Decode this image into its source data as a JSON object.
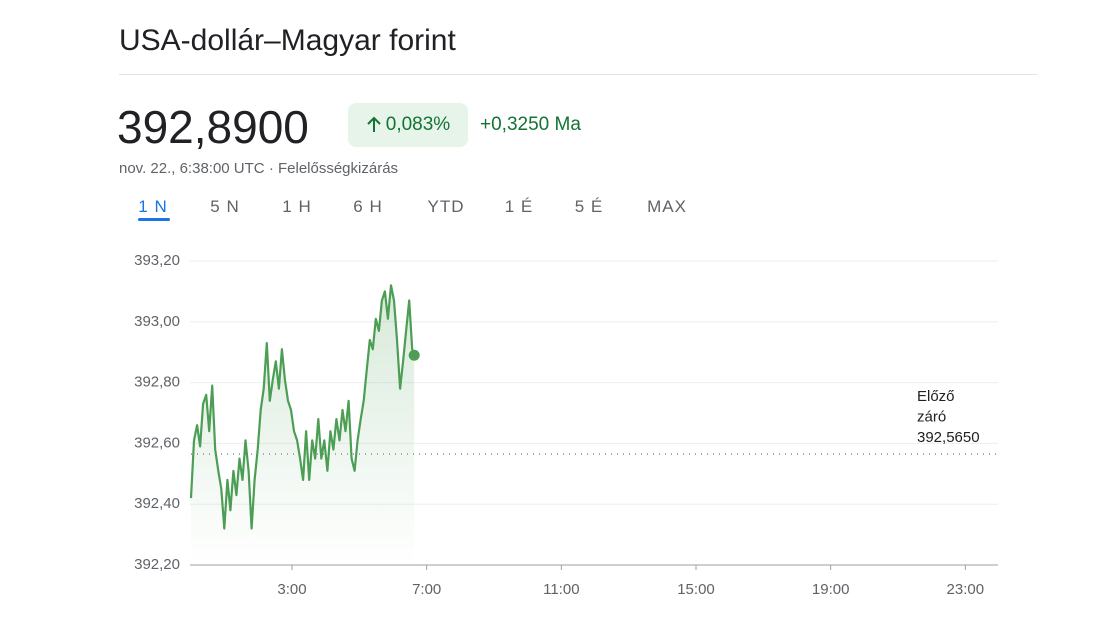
{
  "header": {
    "title": "USA-dollár–Magyar forint",
    "price": "392,8900",
    "change_percent": "0,083%",
    "change": "+0,3250 Ma",
    "timestamp": "nov. 22., 6:38:00 UTC",
    "separator": "·",
    "disclaimer": "Felelősségkizárás"
  },
  "tabs": {
    "items": [
      "1 N",
      "5 N",
      "1 H",
      "6 H",
      "YTD",
      "1 É",
      "5 É",
      "MAX"
    ],
    "selected": 0
  },
  "chart_data": {
    "type": "line",
    "color": "#4c9e55",
    "grid": true,
    "x": [
      0,
      0.09,
      0.18,
      0.27,
      0.36,
      0.45,
      0.54,
      0.63,
      0.72,
      0.81,
      0.9,
      0.99,
      1.08,
      1.17,
      1.26,
      1.35,
      1.44,
      1.53,
      1.62,
      1.71,
      1.8,
      1.89,
      1.98,
      2.07,
      2.16,
      2.25,
      2.34,
      2.43,
      2.52,
      2.61,
      2.7,
      2.79,
      2.88,
      2.97,
      3.06,
      3.15,
      3.24,
      3.33,
      3.42,
      3.51,
      3.6,
      3.69,
      3.78,
      3.87,
      3.96,
      4.05,
      4.14,
      4.23,
      4.32,
      4.41,
      4.5,
      4.59,
      4.68,
      4.77,
      4.86,
      4.95,
      5.04,
      5.13,
      5.22,
      5.31,
      5.4,
      5.49,
      5.58,
      5.67,
      5.76,
      5.85,
      5.94,
      6.03,
      6.12,
      6.21,
      6.3,
      6.39,
      6.48,
      6.57,
      6.63
    ],
    "values": [
      392.42,
      392.61,
      392.66,
      392.59,
      392.73,
      392.76,
      392.64,
      392.79,
      392.58,
      392.51,
      392.45,
      392.32,
      392.48,
      392.38,
      392.51,
      392.43,
      392.55,
      392.48,
      392.61,
      392.51,
      392.32,
      392.48,
      392.58,
      392.71,
      392.78,
      392.93,
      392.74,
      392.81,
      392.87,
      392.78,
      392.91,
      392.81,
      392.74,
      392.71,
      392.64,
      392.61,
      392.55,
      392.48,
      392.64,
      392.48,
      392.61,
      392.55,
      392.68,
      392.55,
      392.61,
      392.51,
      392.64,
      392.58,
      392.68,
      392.61,
      392.71,
      392.64,
      392.74,
      392.55,
      392.51,
      392.61,
      392.68,
      392.74,
      392.84,
      392.94,
      392.91,
      393.01,
      392.97,
      393.07,
      393.1,
      393.01,
      393.12,
      393.07,
      392.94,
      392.78,
      392.87,
      392.97,
      393.07,
      392.91,
      392.89
    ],
    "xlim": [
      0,
      24
    ],
    "xticks": [
      {
        "value": 3,
        "label": "3:00"
      },
      {
        "value": 7,
        "label": "7:00"
      },
      {
        "value": 11,
        "label": "11:00"
      },
      {
        "value": 15,
        "label": "15:00"
      },
      {
        "value": 19,
        "label": "19:00"
      },
      {
        "value": 23,
        "label": "23:00"
      }
    ],
    "ylim": [
      392.2,
      393.2
    ],
    "yticks": [
      {
        "value": 392.2,
        "label": "392,20"
      },
      {
        "value": 392.4,
        "label": "392,40"
      },
      {
        "value": 392.6,
        "label": "392,60"
      },
      {
        "value": 392.8,
        "label": "392,80"
      },
      {
        "value": 393.0,
        "label": "393,00"
      },
      {
        "value": 393.2,
        "label": "393,20"
      }
    ],
    "previous_close": {
      "lines": [
        "Előző",
        "záró"
      ],
      "value": 392.565,
      "label": "392,5650"
    }
  }
}
